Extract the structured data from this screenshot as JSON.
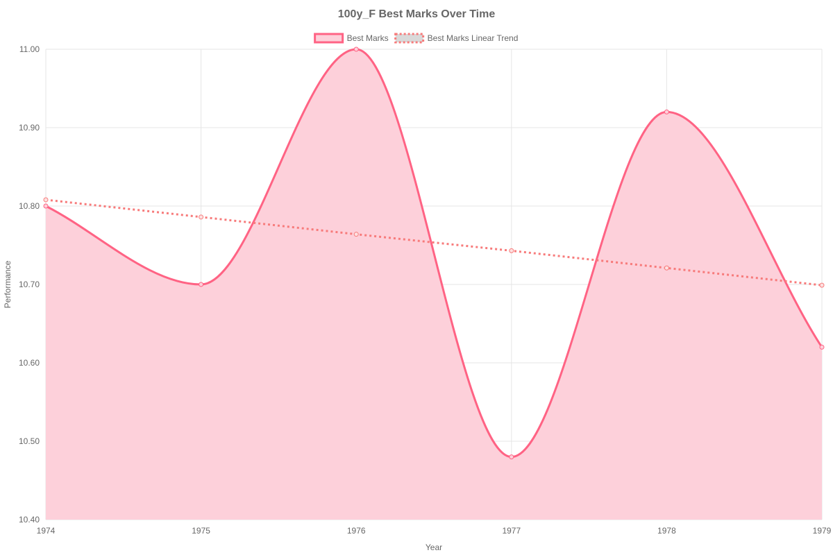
{
  "chart_data": {
    "type": "line",
    "title": "100y_F Best Marks Over Time",
    "xlabel": "Year",
    "ylabel": "Performance",
    "categories": [
      "1974",
      "1975",
      "1976",
      "1977",
      "1978",
      "1979"
    ],
    "ylim": [
      10.4,
      11.0
    ],
    "y_ticks": [
      "10.40",
      "10.50",
      "10.60",
      "10.70",
      "10.80",
      "10.90",
      "11.00"
    ],
    "grid": true,
    "legend_position": "top",
    "series": [
      {
        "name": "Best Marks",
        "values": [
          10.8,
          10.7,
          11.0,
          10.48,
          10.92,
          10.62
        ],
        "color": "#ff6384",
        "fill_color": "#fdd0da",
        "style": "solid",
        "filled": true,
        "smooth": true
      },
      {
        "name": "Best Marks Linear Trend",
        "values": [
          10.808,
          10.786,
          10.764,
          10.743,
          10.721,
          10.699
        ],
        "color": "#f77b7b",
        "fill_color": "#d9d9d9",
        "style": "dotted",
        "filled": false,
        "smooth": false
      }
    ]
  }
}
